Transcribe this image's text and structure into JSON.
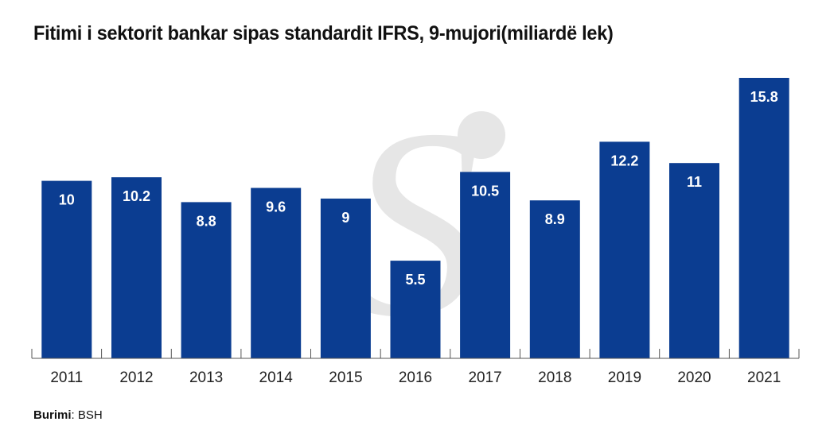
{
  "chart_data": {
    "type": "bar",
    "title": "Fitimi i sektorit bankar sipas standardit IFRS, 9-mujori(miliardë lek)",
    "categories": [
      "2011",
      "2012",
      "2013",
      "2014",
      "2015",
      "2016",
      "2017",
      "2018",
      "2019",
      "2020",
      "2021"
    ],
    "values": [
      10,
      10.2,
      8.8,
      9.6,
      9,
      5.5,
      10.5,
      8.9,
      12.2,
      11,
      15.8
    ],
    "data_labels": [
      "10",
      "10.2",
      "8.8",
      "9.6",
      "9",
      "5.5",
      "10.5",
      "8.9",
      "12.2",
      "11",
      "15.8"
    ],
    "xlabel": "",
    "ylabel": "",
    "ylim": [
      0,
      15.8
    ],
    "grid": false,
    "legend": "none",
    "bar_color": "#0b3d91",
    "label_color": "#ffffff"
  },
  "source": {
    "label": "Burimi",
    "value": "BSH"
  },
  "watermark": {
    "glyph": "S",
    "color": "#e6e6e6"
  }
}
